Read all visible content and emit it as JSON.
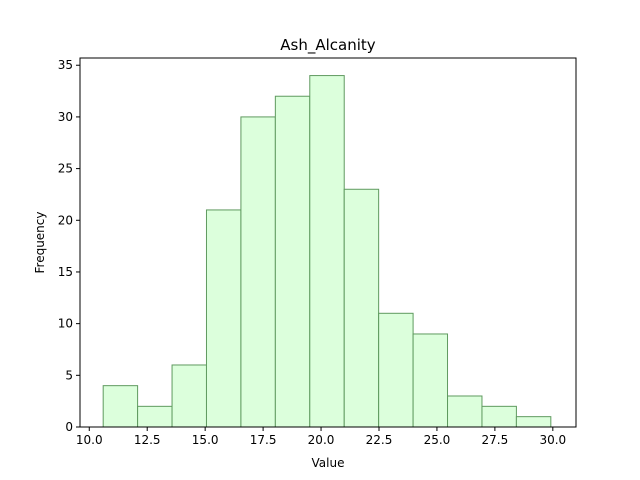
{
  "chart_data": {
    "type": "bar",
    "title": "Ash_Alcanity",
    "xlabel": "Value",
    "ylabel": "Frequency",
    "bin_edges": [
      10.6,
      12.0857,
      13.5714,
      15.0571,
      16.5429,
      18.0286,
      19.5143,
      21.0,
      22.4857,
      23.9714,
      25.4571,
      26.9429,
      28.4286,
      29.9143
    ],
    "values": [
      4,
      2,
      6,
      21,
      30,
      32,
      34,
      23,
      11,
      9,
      3,
      2,
      1
    ],
    "xlim": [
      9.6,
      31.0
    ],
    "ylim": [
      0,
      35.7
    ],
    "xticks": [
      "10.0",
      "12.5",
      "15.0",
      "17.5",
      "20.0",
      "22.5",
      "25.0",
      "27.5",
      "30.0"
    ],
    "xtick_values": [
      10.0,
      12.5,
      15.0,
      17.5,
      20.0,
      22.5,
      25.0,
      27.5,
      30.0
    ],
    "yticks": [
      "0",
      "5",
      "10",
      "15",
      "20",
      "25",
      "30",
      "35"
    ],
    "ytick_values": [
      0,
      5,
      10,
      15,
      20,
      25,
      30,
      35
    ],
    "bar_fill": "#dcffdc",
    "bar_edge": "#5f9a5f",
    "grid": false,
    "legend": false
  }
}
